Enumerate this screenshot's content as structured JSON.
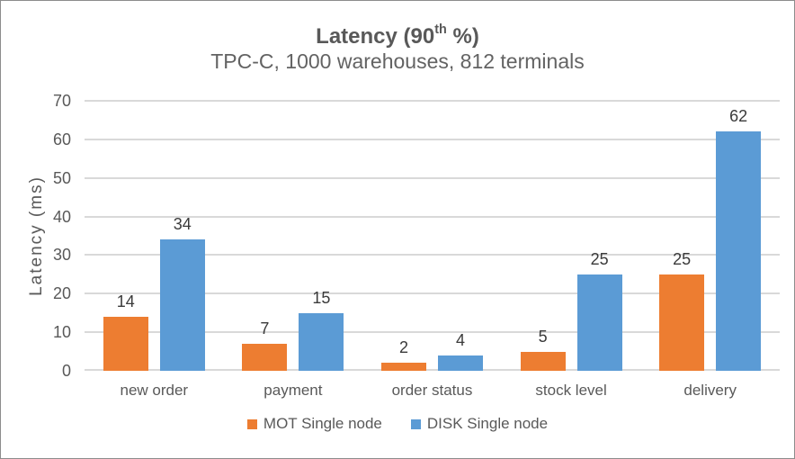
{
  "header": {
    "title_prefix": "Latency (90",
    "title_sup": "th",
    "title_suffix": " %)",
    "subtitle": "TPC-C, 1000 warehouses, 812 terminals"
  },
  "chart_data": {
    "type": "bar",
    "title": "Latency (90th %)",
    "subtitle": "TPC-C, 1000 warehouses, 812 terminals",
    "categories": [
      "new order",
      "payment",
      "order status",
      "stock level",
      "delivery"
    ],
    "series": [
      {
        "name": "MOT Single node",
        "color": "#ED7D31",
        "values": [
          14,
          7,
          2,
          5,
          25
        ]
      },
      {
        "name": "DISK Single node",
        "color": "#5B9BD5",
        "values": [
          34,
          15,
          4,
          25,
          62
        ]
      }
    ],
    "xlabel": "",
    "ylabel": "Latency (ms)",
    "ylim": [
      0,
      70
    ],
    "yticks": [
      0,
      10,
      20,
      30,
      40,
      50,
      60,
      70
    ],
    "grid": true,
    "grid_axis": "y",
    "legend_position": "bottom",
    "data_labels": true
  },
  "colors": {
    "grid": "#D9D9D9",
    "axis_text": "#595959",
    "title_text": "#595959",
    "value_label_text": "#3A3A3A",
    "border": "#8C8C8C",
    "background": "#FFFFFF"
  }
}
